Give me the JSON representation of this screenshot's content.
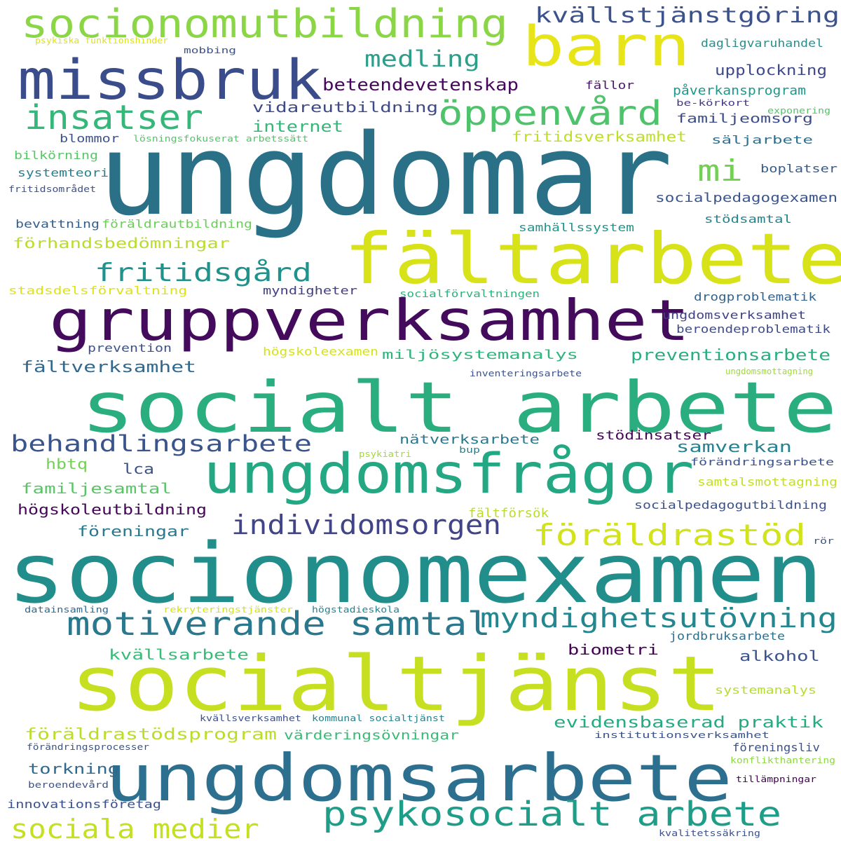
{
  "words": [
    {
      "text": "ungdomar",
      "color": "#2a7087"
    },
    {
      "text": "socionomexamen",
      "color": "#218e8b"
    },
    {
      "text": "socialtjänst",
      "color": "#c6e021"
    },
    {
      "text": "socialt arbete",
      "color": "#2aae80"
    },
    {
      "text": "fältarbete",
      "color": "#d8e219"
    },
    {
      "text": "ungdomsarbete",
      "color": "#2c6f8e"
    },
    {
      "text": "gruppverksamhet",
      "color": "#440a5c"
    },
    {
      "text": "missbruk",
      "color": "#3b4c8a"
    },
    {
      "text": "barn",
      "color": "#e7e51a"
    },
    {
      "text": "ungdomsfrågor",
      "color": "#23a883"
    },
    {
      "text": "socionomutbildning",
      "color": "#8bd646"
    },
    {
      "text": "psykosocialt arbete",
      "color": "#1f9d89"
    },
    {
      "text": "motiverande samtal",
      "color": "#2a788e"
    },
    {
      "text": "insatser",
      "color": "#35b779"
    },
    {
      "text": "öppenvård",
      "color": "#4ec36b"
    },
    {
      "text": "sociala medier",
      "color": "#c5e021"
    },
    {
      "text": "föräldrastöd",
      "color": "#d2e21b"
    },
    {
      "text": "myndighetsutövning",
      "color": "#24868e"
    },
    {
      "text": "individomsorgen",
      "color": "#414487"
    },
    {
      "text": "behandlingsarbete",
      "color": "#3a548c"
    },
    {
      "text": "fritidsgård",
      "color": "#20928c"
    },
    {
      "text": "mi",
      "color": "#73d055"
    },
    {
      "text": "kvällstjänstgöring",
      "color": "#3b528b"
    },
    {
      "text": "medling",
      "color": "#2d9e89"
    },
    {
      "text": "beteendevetenskap",
      "color": "#46085c"
    },
    {
      "text": "vidareutbildning",
      "color": "#3e4a89"
    },
    {
      "text": "internet",
      "color": "#35b779"
    },
    {
      "text": "familjeomsorg",
      "color": "#3d4d8a"
    },
    {
      "text": "upplockning",
      "color": "#3f4889"
    },
    {
      "text": "dagligvaruhandel",
      "color": "#2c8e8c"
    },
    {
      "text": "påverkansprogram",
      "color": "#1f988b"
    },
    {
      "text": "fällor",
      "color": "#481769"
    },
    {
      "text": "be-körkort",
      "color": "#453781"
    },
    {
      "text": "exponering",
      "color": "#52c569"
    },
    {
      "text": "fritidsverksamhet",
      "color": "#bddf26"
    },
    {
      "text": "säljarbete",
      "color": "#2e6e8e"
    },
    {
      "text": "boplatser",
      "color": "#365c8d"
    },
    {
      "text": "socialpedagogexamen",
      "color": "#3a548c"
    },
    {
      "text": "stödsamtal",
      "color": "#25848e"
    },
    {
      "text": "samhällssystem",
      "color": "#1f968b"
    },
    {
      "text": "föräldrautbildning",
      "color": "#6ccd5a"
    },
    {
      "text": "bevattning",
      "color": "#355f8d"
    },
    {
      "text": "förhandsbedömningar",
      "color": "#b8de29"
    },
    {
      "text": "stadsdelsförvaltning",
      "color": "#dde318"
    },
    {
      "text": "myndigheter",
      "color": "#433e85"
    },
    {
      "text": "socialförvaltningen",
      "color": "#2db27d"
    },
    {
      "text": "drogproblematik",
      "color": "#33638d"
    },
    {
      "text": "ungdomsverksamhet",
      "color": "#414487"
    },
    {
      "text": "beroendeproblematik",
      "color": "#3e4c8a"
    },
    {
      "text": "prevention",
      "color": "#3b528b"
    },
    {
      "text": "högskoleexamen",
      "color": "#d5e21a"
    },
    {
      "text": "miljösystemanalys",
      "color": "#2fb47c"
    },
    {
      "text": "preventionsarbete",
      "color": "#29af7f"
    },
    {
      "text": "fältverksamhet",
      "color": "#31688e"
    },
    {
      "text": "inventeringsarbete",
      "color": "#3b528b"
    },
    {
      "text": "ungdomsmottagning",
      "color": "#a0da39"
    },
    {
      "text": "nätverksarbete",
      "color": "#2a788e"
    },
    {
      "text": "stödinsatser",
      "color": "#450559"
    },
    {
      "text": "samverkan",
      "color": "#26828e"
    },
    {
      "text": "psykiatri",
      "color": "#a2da37"
    },
    {
      "text": "bup",
      "color": "#26818e"
    },
    {
      "text": "förändringsarbete",
      "color": "#3b528b"
    },
    {
      "text": "samtalsmottagning",
      "color": "#c2df23"
    },
    {
      "text": "hbtq",
      "color": "#73d055"
    },
    {
      "text": "lca",
      "color": "#3b528b"
    },
    {
      "text": "familjesamtal",
      "color": "#57c665"
    },
    {
      "text": "högskoleutbildning",
      "color": "#450559"
    },
    {
      "text": "fältförsök",
      "color": "#bade28"
    },
    {
      "text": "socialpedagogutbildning",
      "color": "#3b528b"
    },
    {
      "text": "föreningar",
      "color": "#2a788e"
    },
    {
      "text": "rör",
      "color": "#3b528b"
    },
    {
      "text": "datainsamling",
      "color": "#31688e"
    },
    {
      "text": "rekryteringstjänster",
      "color": "#d2e21b"
    },
    {
      "text": "högstadieskola",
      "color": "#26828e"
    },
    {
      "text": "jordbruksarbete",
      "color": "#2d718e"
    },
    {
      "text": "biometri",
      "color": "#440154"
    },
    {
      "text": "kvällsarbete",
      "color": "#3aba76"
    },
    {
      "text": "alkohol",
      "color": "#3b528b"
    },
    {
      "text": "systemanalys",
      "color": "#b5de2b"
    },
    {
      "text": "evidensbaserad praktik",
      "color": "#25ab82"
    },
    {
      "text": "föräldrastödsprogram",
      "color": "#bade28"
    },
    {
      "text": "värderingsövningar",
      "color": "#3aba76"
    },
    {
      "text": "kvällsverksamhet",
      "color": "#3b528b"
    },
    {
      "text": "kommunal socialtjänst",
      "color": "#26828e"
    },
    {
      "text": "institutionsverksamhet",
      "color": "#3b528b"
    },
    {
      "text": "föreningsliv",
      "color": "#3b528b"
    },
    {
      "text": "förändringsprocesser",
      "color": "#3b528b"
    },
    {
      "text": "konflikthantering",
      "color": "#8fd744"
    },
    {
      "text": "torkning",
      "color": "#31688e"
    },
    {
      "text": "beroendevård",
      "color": "#3b528b"
    },
    {
      "text": "tillämpningar",
      "color": "#440154"
    },
    {
      "text": "innovationsföretag",
      "color": "#3b528b"
    },
    {
      "text": "kvalitetssäkring",
      "color": "#3b528b"
    },
    {
      "text": "mobbing",
      "color": "#3b528b"
    },
    {
      "text": "psykiska funktionshinder",
      "color": "#dde318"
    },
    {
      "text": "blommor",
      "color": "#3b528b"
    },
    {
      "text": "lösningsfokuserat arbetssätt",
      "color": "#52c569"
    },
    {
      "text": "bilkörning",
      "color": "#57c665"
    },
    {
      "text": "systemteori",
      "color": "#26828e"
    },
    {
      "text": "fritidsområdet",
      "color": "#3b528b"
    }
  ]
}
